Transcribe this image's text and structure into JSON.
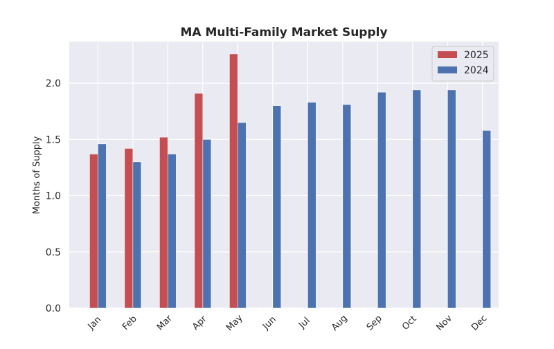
{
  "chart_data": {
    "type": "bar",
    "title": "MA Multi-Family Market Supply",
    "xlabel": "",
    "ylabel": "Months of Supply",
    "categories": [
      "Jan",
      "Feb",
      "Mar",
      "Apr",
      "May",
      "Jun",
      "Jul",
      "Aug",
      "Sep",
      "Oct",
      "Nov",
      "Dec"
    ],
    "series": [
      {
        "name": "2025",
        "color": "#c44e52",
        "values": [
          1.37,
          1.42,
          1.52,
          1.91,
          2.26,
          null,
          null,
          null,
          null,
          null,
          null,
          null
        ]
      },
      {
        "name": "2024",
        "color": "#4c72b0",
        "values": [
          1.46,
          1.3,
          1.37,
          1.5,
          1.65,
          1.8,
          1.83,
          1.81,
          1.92,
          1.94,
          1.94,
          1.58
        ]
      }
    ],
    "ylim": [
      0,
      2.37
    ],
    "yticks": [
      "0.0",
      "0.5",
      "1.0",
      "1.5",
      "2.0"
    ],
    "grid": true,
    "legend_position": "top-right",
    "background": "#eaeaf2"
  }
}
